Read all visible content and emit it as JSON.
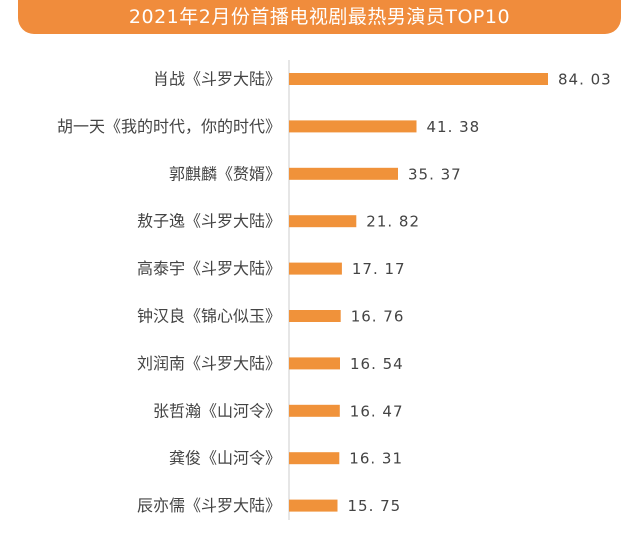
{
  "chart_data": {
    "type": "bar",
    "orientation": "horizontal",
    "title": "2021年2月份首播电视剧最热男演员TOP10",
    "categories": [
      "肖战《斗罗大陆》",
      "胡一天《我的时代，你的时代》",
      "郭麒麟《赘婿》",
      "敖子逸《斗罗大陆》",
      "高泰宇《斗罗大陆》",
      "钟汉良《锦心似玉》",
      "刘润南《斗罗大陆》",
      "张哲瀚《山河令》",
      "龚俊《山河令》",
      "辰亦儒《斗罗大陆》"
    ],
    "values": [
      84.03,
      41.38,
      35.37,
      21.82,
      17.17,
      16.76,
      16.54,
      16.47,
      16.31,
      15.75
    ],
    "value_labels": [
      "84. 03",
      "41. 38",
      "35. 37",
      "21. 82",
      "17. 17",
      "16. 76",
      "16. 54",
      "16. 47",
      "16. 31",
      "15. 75"
    ],
    "xlim": [
      0,
      84.03
    ],
    "grid": false,
    "legend": "none",
    "bar_color": "#f0923a",
    "header_color": "#f08c3c"
  }
}
